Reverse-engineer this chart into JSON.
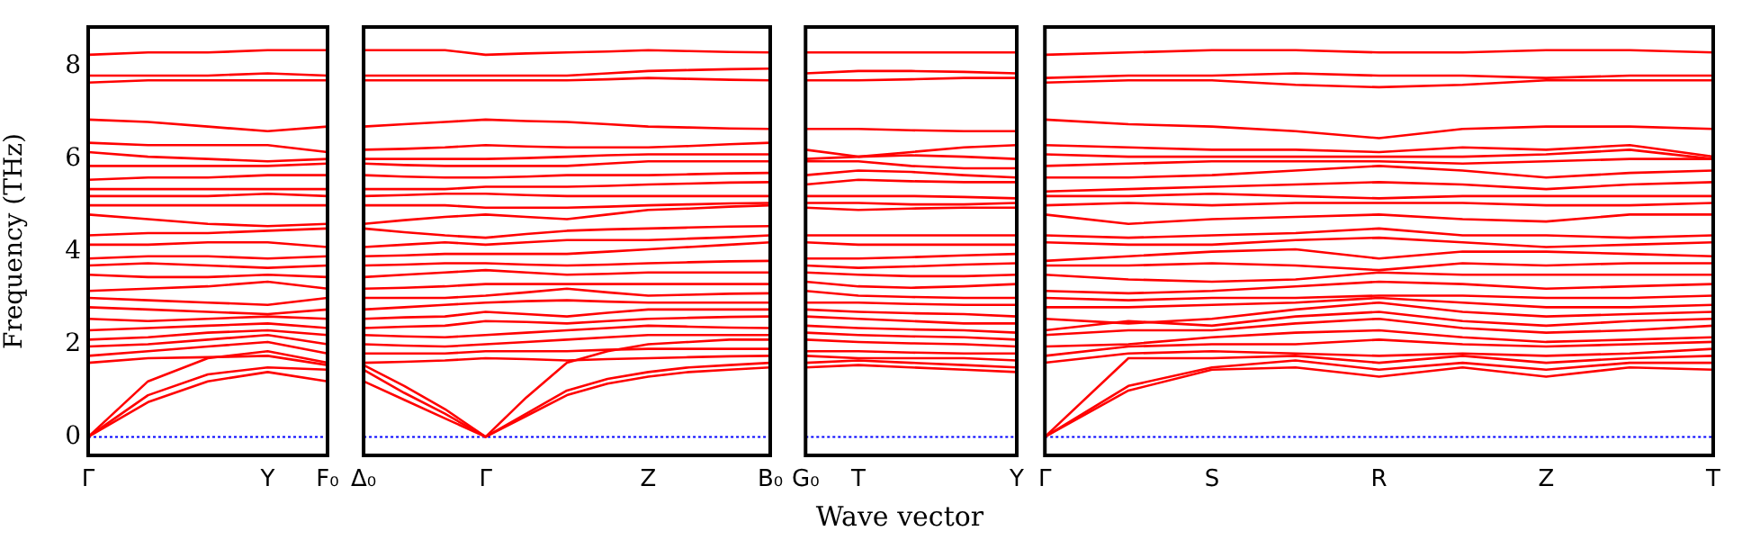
{
  "chart_data": [
    {
      "type": "line",
      "ylabel": "Frequency (THz)",
      "categories": [
        "Γ",
        null,
        null,
        "Y",
        "F₀"
      ],
      "ylim": [
        -0.4,
        8.85
      ],
      "yticks": [
        0,
        2,
        4,
        6,
        8
      ],
      "marker": "none",
      "line_style": "solid",
      "ref_lines": [
        {
          "axis": "y",
          "value": 0,
          "color": "#0000ff",
          "line_style": "dotted"
        }
      ],
      "series": [
        {
          "color": "#ff0000",
          "values": [
            0,
            0.75,
            1.2,
            1.4,
            1.2
          ]
        },
        {
          "color": "#ff0000",
          "values": [
            0,
            0.9,
            1.35,
            1.5,
            1.45
          ]
        },
        {
          "color": "#ff0000",
          "values": [
            0,
            1.2,
            1.7,
            1.85,
            1.6
          ]
        },
        {
          "color": "#ff0000",
          "values": [
            1.6,
            1.7,
            1.72,
            1.75,
            1.55
          ]
        },
        {
          "color": "#ff0000",
          "values": [
            1.75,
            1.85,
            1.95,
            2.05,
            1.8
          ]
        },
        {
          "color": "#ff0000",
          "values": [
            1.95,
            2.0,
            2.1,
            2.2,
            2.0
          ]
        },
        {
          "color": "#ff0000",
          "values": [
            2.1,
            2.15,
            2.25,
            2.3,
            2.2
          ]
        },
        {
          "color": "#ff0000",
          "values": [
            2.3,
            2.35,
            2.4,
            2.45,
            2.35
          ]
        },
        {
          "color": "#ff0000",
          "values": [
            2.55,
            2.5,
            2.55,
            2.6,
            2.55
          ]
        },
        {
          "color": "#ff0000",
          "values": [
            2.8,
            2.75,
            2.7,
            2.65,
            2.75
          ]
        },
        {
          "color": "#ff0000",
          "values": [
            3.0,
            2.95,
            2.9,
            2.85,
            3.0
          ]
        },
        {
          "color": "#ff0000",
          "values": [
            3.15,
            3.2,
            3.25,
            3.35,
            3.2
          ]
        },
        {
          "color": "#ff0000",
          "values": [
            3.5,
            3.45,
            3.45,
            3.5,
            3.45
          ]
        },
        {
          "color": "#ff0000",
          "values": [
            3.7,
            3.75,
            3.7,
            3.65,
            3.7
          ]
        },
        {
          "color": "#ff0000",
          "values": [
            3.85,
            3.9,
            3.9,
            3.85,
            3.9
          ]
        },
        {
          "color": "#ff0000",
          "values": [
            4.15,
            4.15,
            4.2,
            4.2,
            4.1
          ]
        },
        {
          "color": "#ff0000",
          "values": [
            4.35,
            4.4,
            4.4,
            4.45,
            4.5
          ]
        },
        {
          "color": "#ff0000",
          "values": [
            4.8,
            4.7,
            4.6,
            4.55,
            4.6
          ]
        },
        {
          "color": "#ff0000",
          "values": [
            5.0,
            5.0,
            5.0,
            5.0,
            5.0
          ]
        },
        {
          "color": "#ff0000",
          "values": [
            5.2,
            5.2,
            5.2,
            5.25,
            5.2
          ]
        },
        {
          "color": "#ff0000",
          "values": [
            5.35,
            5.35,
            5.35,
            5.35,
            5.35
          ]
        },
        {
          "color": "#ff0000",
          "values": [
            5.55,
            5.6,
            5.6,
            5.65,
            5.65
          ]
        },
        {
          "color": "#ff0000",
          "values": [
            5.85,
            5.85,
            5.85,
            5.85,
            5.9
          ]
        },
        {
          "color": "#ff0000",
          "values": [
            6.15,
            6.05,
            6.0,
            5.95,
            6.0
          ]
        },
        {
          "color": "#ff0000",
          "values": [
            6.35,
            6.3,
            6.3,
            6.3,
            6.15
          ]
        },
        {
          "color": "#ff0000",
          "values": [
            6.85,
            6.8,
            6.7,
            6.6,
            6.7
          ]
        },
        {
          "color": "#ff0000",
          "values": [
            7.65,
            7.7,
            7.7,
            7.7,
            7.7
          ]
        },
        {
          "color": "#ff0000",
          "values": [
            7.8,
            7.8,
            7.8,
            7.85,
            7.8
          ]
        },
        {
          "color": "#ff0000",
          "values": [
            8.25,
            8.3,
            8.3,
            8.35,
            8.35
          ]
        }
      ]
    },
    {
      "type": "line",
      "xlabel": "Wave vector",
      "categories": [
        "Δ₀",
        null,
        null,
        "Γ",
        null,
        null,
        null,
        "Z",
        null,
        null,
        "B₀"
      ],
      "ylim": [
        -0.4,
        8.85
      ],
      "tick_labels": "x",
      "marker": "none",
      "line_style": "solid",
      "ref_lines": [
        {
          "axis": "y",
          "value": 0,
          "color": "#0000ff",
          "line_style": "dotted"
        }
      ],
      "series": [
        {
          "color": "#ff0000",
          "values": [
            1.2,
            0.8,
            0.4,
            0,
            0.45,
            0.9,
            1.15,
            1.3,
            1.4,
            1.45,
            1.5
          ]
        },
        {
          "color": "#ff0000",
          "values": [
            1.45,
            0.95,
            0.5,
            0,
            0.5,
            1.0,
            1.25,
            1.4,
            1.5,
            1.55,
            1.6
          ]
        },
        {
          "color": "#ff0000",
          "values": [
            1.55,
            1.1,
            0.6,
            0,
            0.85,
            1.6,
            1.85,
            2.0,
            2.05,
            2.1,
            2.1
          ]
        },
        {
          "color": "#ff0000",
          "values": [
            1.6,
            1.62,
            1.65,
            1.7,
            1.68,
            1.65,
            1.68,
            1.7,
            1.72,
            1.74,
            1.75
          ]
        },
        {
          "color": "#ff0000",
          "values": [
            1.8,
            1.8,
            1.8,
            1.85,
            1.85,
            1.85,
            1.88,
            1.9,
            1.9,
            1.9,
            1.9
          ]
        },
        {
          "color": "#ff0000",
          "values": [
            2.0,
            1.97,
            1.95,
            2.0,
            2.05,
            2.1,
            2.15,
            2.2,
            2.2,
            2.2,
            2.2
          ]
        },
        {
          "color": "#ff0000",
          "values": [
            2.2,
            2.17,
            2.15,
            2.2,
            2.25,
            2.3,
            2.35,
            2.4,
            2.38,
            2.36,
            2.35
          ]
        },
        {
          "color": "#ff0000",
          "values": [
            2.35,
            2.38,
            2.4,
            2.5,
            2.48,
            2.45,
            2.5,
            2.55,
            2.57,
            2.59,
            2.6
          ]
        },
        {
          "color": "#ff0000",
          "values": [
            2.55,
            2.58,
            2.6,
            2.7,
            2.65,
            2.6,
            2.68,
            2.75,
            2.75,
            2.75,
            2.75
          ]
        },
        {
          "color": "#ff0000",
          "values": [
            2.75,
            2.8,
            2.85,
            2.9,
            2.93,
            2.95,
            2.92,
            2.9,
            2.9,
            2.9,
            2.9
          ]
        },
        {
          "color": "#ff0000",
          "values": [
            3.0,
            3.0,
            3.0,
            3.05,
            3.12,
            3.2,
            3.12,
            3.05,
            3.07,
            3.09,
            3.1
          ]
        },
        {
          "color": "#ff0000",
          "values": [
            3.2,
            3.22,
            3.25,
            3.3,
            3.3,
            3.3,
            3.3,
            3.3,
            3.3,
            3.3,
            3.3
          ]
        },
        {
          "color": "#ff0000",
          "values": [
            3.45,
            3.5,
            3.55,
            3.6,
            3.55,
            3.5,
            3.52,
            3.55,
            3.55,
            3.55,
            3.55
          ]
        },
        {
          "color": "#ff0000",
          "values": [
            3.7,
            3.72,
            3.75,
            3.75,
            3.72,
            3.7,
            3.72,
            3.75,
            3.77,
            3.79,
            3.8
          ]
        },
        {
          "color": "#ff0000",
          "values": [
            3.9,
            3.92,
            3.95,
            3.95,
            3.95,
            3.95,
            4.0,
            4.05,
            4.1,
            4.15,
            4.2
          ]
        },
        {
          "color": "#ff0000",
          "values": [
            4.1,
            4.15,
            4.2,
            4.15,
            4.2,
            4.25,
            4.25,
            4.25,
            4.28,
            4.31,
            4.35
          ]
        },
        {
          "color": "#ff0000",
          "values": [
            4.5,
            4.42,
            4.35,
            4.3,
            4.38,
            4.45,
            4.48,
            4.5,
            4.52,
            4.54,
            4.55
          ]
        },
        {
          "color": "#ff0000",
          "values": [
            4.6,
            4.68,
            4.75,
            4.8,
            4.75,
            4.7,
            4.8,
            4.9,
            4.93,
            4.97,
            5.0
          ]
        },
        {
          "color": "#ff0000",
          "values": [
            5.0,
            5.0,
            5.0,
            4.95,
            4.95,
            4.95,
            4.97,
            5.0,
            5.02,
            5.04,
            5.05
          ]
        },
        {
          "color": "#ff0000",
          "values": [
            5.2,
            5.22,
            5.25,
            5.25,
            5.22,
            5.2,
            5.2,
            5.2,
            5.2,
            5.2,
            5.2
          ]
        },
        {
          "color": "#ff0000",
          "values": [
            5.35,
            5.35,
            5.35,
            5.4,
            5.4,
            5.4,
            5.42,
            5.45,
            5.47,
            5.49,
            5.5
          ]
        },
        {
          "color": "#ff0000",
          "values": [
            5.65,
            5.62,
            5.6,
            5.6,
            5.62,
            5.65,
            5.65,
            5.65,
            5.67,
            5.69,
            5.7
          ]
        },
        {
          "color": "#ff0000",
          "values": [
            5.9,
            5.87,
            5.85,
            5.85,
            5.85,
            5.85,
            5.9,
            5.95,
            5.95,
            5.95,
            5.95
          ]
        },
        {
          "color": "#ff0000",
          "values": [
            6.0,
            6.0,
            6.0,
            6.0,
            6.02,
            6.05,
            6.08,
            6.1,
            6.1,
            6.1,
            6.1
          ]
        },
        {
          "color": "#ff0000",
          "values": [
            6.2,
            6.22,
            6.25,
            6.3,
            6.27,
            6.25,
            6.25,
            6.25,
            6.28,
            6.32,
            6.35
          ]
        },
        {
          "color": "#ff0000",
          "values": [
            6.7,
            6.75,
            6.8,
            6.85,
            6.82,
            6.8,
            6.75,
            6.7,
            6.68,
            6.66,
            6.65
          ]
        },
        {
          "color": "#ff0000",
          "values": [
            7.7,
            7.7,
            7.7,
            7.7,
            7.7,
            7.7,
            7.72,
            7.75,
            7.73,
            7.71,
            7.7
          ]
        },
        {
          "color": "#ff0000",
          "values": [
            7.8,
            7.8,
            7.8,
            7.8,
            7.8,
            7.8,
            7.85,
            7.9,
            7.92,
            7.94,
            7.95
          ]
        },
        {
          "color": "#ff0000",
          "values": [
            8.35,
            8.35,
            8.35,
            8.25,
            8.28,
            8.3,
            8.32,
            8.35,
            8.33,
            8.31,
            8.3
          ]
        }
      ]
    },
    {
      "type": "line",
      "categories": [
        "G₀",
        "T",
        null,
        null,
        "Y"
      ],
      "ylim": [
        -0.4,
        8.85
      ],
      "tick_labels": "x",
      "marker": "none",
      "line_style": "solid",
      "ref_lines": [
        {
          "axis": "y",
          "value": 0,
          "color": "#0000ff",
          "line_style": "dotted"
        }
      ],
      "series": [
        {
          "color": "#ff0000",
          "values": [
            1.5,
            1.55,
            1.5,
            1.45,
            1.4
          ]
        },
        {
          "color": "#ff0000",
          "values": [
            1.6,
            1.65,
            1.6,
            1.55,
            1.5
          ]
        },
        {
          "color": "#ff0000",
          "values": [
            1.75,
            1.7,
            1.7,
            1.7,
            1.65
          ]
        },
        {
          "color": "#ff0000",
          "values": [
            1.85,
            1.85,
            1.82,
            1.8,
            1.8
          ]
        },
        {
          "color": "#ff0000",
          "values": [
            2.1,
            2.05,
            2.02,
            2.0,
            1.95
          ]
        },
        {
          "color": "#ff0000",
          "values": [
            2.25,
            2.2,
            2.17,
            2.15,
            2.1
          ]
        },
        {
          "color": "#ff0000",
          "values": [
            2.4,
            2.35,
            2.32,
            2.3,
            2.25
          ]
        },
        {
          "color": "#ff0000",
          "values": [
            2.6,
            2.55,
            2.5,
            2.45,
            2.45
          ]
        },
        {
          "color": "#ff0000",
          "values": [
            2.75,
            2.7,
            2.67,
            2.65,
            2.6
          ]
        },
        {
          "color": "#ff0000",
          "values": [
            2.9,
            2.9,
            2.87,
            2.85,
            2.85
          ]
        },
        {
          "color": "#ff0000",
          "values": [
            3.15,
            3.05,
            3.02,
            3.0,
            3.0
          ]
        },
        {
          "color": "#ff0000",
          "values": [
            3.35,
            3.25,
            3.22,
            3.25,
            3.3
          ]
        },
        {
          "color": "#ff0000",
          "values": [
            3.55,
            3.5,
            3.47,
            3.47,
            3.5
          ]
        },
        {
          "color": "#ff0000",
          "values": [
            3.7,
            3.65,
            3.68,
            3.72,
            3.75
          ]
        },
        {
          "color": "#ff0000",
          "values": [
            3.85,
            3.85,
            3.88,
            3.92,
            3.95
          ]
        },
        {
          "color": "#ff0000",
          "values": [
            4.2,
            4.15,
            4.15,
            4.15,
            4.15
          ]
        },
        {
          "color": "#ff0000",
          "values": [
            4.35,
            4.35,
            4.35,
            4.35,
            4.35
          ]
        },
        {
          "color": "#ff0000",
          "values": [
            4.95,
            4.9,
            4.93,
            4.95,
            4.95
          ]
        },
        {
          "color": "#ff0000",
          "values": [
            5.05,
            5.05,
            5.02,
            5.02,
            5.05
          ]
        },
        {
          "color": "#ff0000",
          "values": [
            5.2,
            5.2,
            5.2,
            5.18,
            5.15
          ]
        },
        {
          "color": "#ff0000",
          "values": [
            5.45,
            5.55,
            5.52,
            5.5,
            5.5
          ]
        },
        {
          "color": "#ff0000",
          "values": [
            5.65,
            5.75,
            5.72,
            5.65,
            5.6
          ]
        },
        {
          "color": "#ff0000",
          "values": [
            5.95,
            5.95,
            5.85,
            5.8,
            5.8
          ]
        },
        {
          "color": "#ff0000",
          "values": [
            6.0,
            6.05,
            6.08,
            6.05,
            6.0
          ]
        },
        {
          "color": "#ff0000",
          "values": [
            6.2,
            6.05,
            6.15,
            6.25,
            6.3
          ]
        },
        {
          "color": "#ff0000",
          "values": [
            6.65,
            6.65,
            6.62,
            6.6,
            6.6
          ]
        },
        {
          "color": "#ff0000",
          "values": [
            7.7,
            7.7,
            7.72,
            7.75,
            7.75
          ]
        },
        {
          "color": "#ff0000",
          "values": [
            7.85,
            7.9,
            7.9,
            7.88,
            7.85
          ]
        },
        {
          "color": "#ff0000",
          "values": [
            8.3,
            8.3,
            8.3,
            8.3,
            8.3
          ]
        }
      ]
    },
    {
      "type": "line",
      "categories": [
        "Γ",
        null,
        "S",
        null,
        "R",
        null,
        "Z",
        null,
        "T"
      ],
      "ylim": [
        -0.4,
        8.85
      ],
      "tick_labels": "x",
      "marker": "none",
      "line_style": "solid",
      "ref_lines": [
        {
          "axis": "y",
          "value": 0,
          "color": "#0000ff",
          "line_style": "dotted"
        }
      ],
      "series": [
        {
          "color": "#ff0000",
          "values": [
            0,
            1.0,
            1.45,
            1.5,
            1.3,
            1.5,
            1.3,
            1.5,
            1.45
          ]
        },
        {
          "color": "#ff0000",
          "values": [
            0,
            1.1,
            1.5,
            1.65,
            1.45,
            1.6,
            1.45,
            1.6,
            1.6
          ]
        },
        {
          "color": "#ff0000",
          "values": [
            0,
            1.7,
            1.7,
            1.75,
            1.6,
            1.75,
            1.6,
            1.7,
            1.75
          ]
        },
        {
          "color": "#ff0000",
          "values": [
            1.6,
            1.8,
            1.85,
            1.8,
            1.75,
            1.8,
            1.75,
            1.8,
            1.9
          ]
        },
        {
          "color": "#ff0000",
          "values": [
            1.75,
            1.95,
            2.0,
            2.0,
            2.1,
            2.0,
            1.95,
            2.0,
            2.05
          ]
        },
        {
          "color": "#ff0000",
          "values": [
            1.95,
            2.0,
            2.15,
            2.25,
            2.3,
            2.15,
            2.05,
            2.1,
            2.15
          ]
        },
        {
          "color": "#ff0000",
          "values": [
            2.2,
            2.3,
            2.3,
            2.45,
            2.55,
            2.35,
            2.25,
            2.3,
            2.4
          ]
        },
        {
          "color": "#ff0000",
          "values": [
            2.3,
            2.5,
            2.4,
            2.6,
            2.7,
            2.5,
            2.4,
            2.5,
            2.55
          ]
        },
        {
          "color": "#ff0000",
          "values": [
            2.55,
            2.45,
            2.55,
            2.75,
            2.9,
            2.7,
            2.6,
            2.65,
            2.7
          ]
        },
        {
          "color": "#ff0000",
          "values": [
            2.8,
            2.8,
            2.85,
            2.9,
            3.0,
            2.9,
            2.8,
            2.8,
            2.85
          ]
        },
        {
          "color": "#ff0000",
          "values": [
            3.0,
            2.95,
            3.0,
            3.0,
            3.05,
            3.05,
            3.0,
            3.0,
            3.05
          ]
        },
        {
          "color": "#ff0000",
          "values": [
            3.15,
            3.1,
            3.15,
            3.25,
            3.35,
            3.3,
            3.2,
            3.25,
            3.3
          ]
        },
        {
          "color": "#ff0000",
          "values": [
            3.5,
            3.4,
            3.35,
            3.4,
            3.55,
            3.5,
            3.5,
            3.5,
            3.5
          ]
        },
        {
          "color": "#ff0000",
          "values": [
            3.7,
            3.7,
            3.75,
            3.7,
            3.6,
            3.75,
            3.7,
            3.75,
            3.75
          ]
        },
        {
          "color": "#ff0000",
          "values": [
            3.8,
            3.9,
            4.0,
            4.05,
            3.85,
            4.0,
            4.0,
            3.95,
            3.9
          ]
        },
        {
          "color": "#ff0000",
          "values": [
            4.2,
            4.15,
            4.15,
            4.25,
            4.3,
            4.2,
            4.1,
            4.15,
            4.2
          ]
        },
        {
          "color": "#ff0000",
          "values": [
            4.35,
            4.3,
            4.35,
            4.4,
            4.5,
            4.35,
            4.35,
            4.3,
            4.35
          ]
        },
        {
          "color": "#ff0000",
          "values": [
            4.8,
            4.6,
            4.7,
            4.75,
            4.8,
            4.7,
            4.65,
            4.8,
            4.8
          ]
        },
        {
          "color": "#ff0000",
          "values": [
            5.0,
            5.05,
            5.0,
            5.05,
            5.05,
            5.05,
            5.0,
            5.0,
            5.05
          ]
        },
        {
          "color": "#ff0000",
          "values": [
            5.2,
            5.2,
            5.25,
            5.2,
            5.15,
            5.2,
            5.2,
            5.2,
            5.2
          ]
        },
        {
          "color": "#ff0000",
          "values": [
            5.3,
            5.35,
            5.4,
            5.45,
            5.5,
            5.45,
            5.35,
            5.45,
            5.5
          ]
        },
        {
          "color": "#ff0000",
          "values": [
            5.6,
            5.6,
            5.65,
            5.75,
            5.85,
            5.75,
            5.6,
            5.7,
            5.75
          ]
        },
        {
          "color": "#ff0000",
          "values": [
            5.85,
            5.9,
            5.95,
            5.95,
            5.95,
            5.9,
            5.95,
            6.0,
            6.0
          ]
        },
        {
          "color": "#ff0000",
          "values": [
            6.1,
            6.05,
            6.05,
            6.05,
            6.05,
            6.05,
            6.1,
            6.2,
            6.0
          ]
        },
        {
          "color": "#ff0000",
          "values": [
            6.3,
            6.25,
            6.2,
            6.2,
            6.15,
            6.25,
            6.2,
            6.3,
            6.05
          ]
        },
        {
          "color": "#ff0000",
          "values": [
            6.85,
            6.75,
            6.7,
            6.6,
            6.45,
            6.65,
            6.7,
            6.7,
            6.65
          ]
        },
        {
          "color": "#ff0000",
          "values": [
            7.65,
            7.7,
            7.7,
            7.6,
            7.55,
            7.6,
            7.7,
            7.7,
            7.7
          ]
        },
        {
          "color": "#ff0000",
          "values": [
            7.75,
            7.8,
            7.8,
            7.85,
            7.8,
            7.8,
            7.75,
            7.8,
            7.8
          ]
        },
        {
          "color": "#ff0000",
          "values": [
            8.25,
            8.3,
            8.35,
            8.35,
            8.3,
            8.3,
            8.35,
            8.35,
            8.3
          ]
        }
      ]
    }
  ]
}
